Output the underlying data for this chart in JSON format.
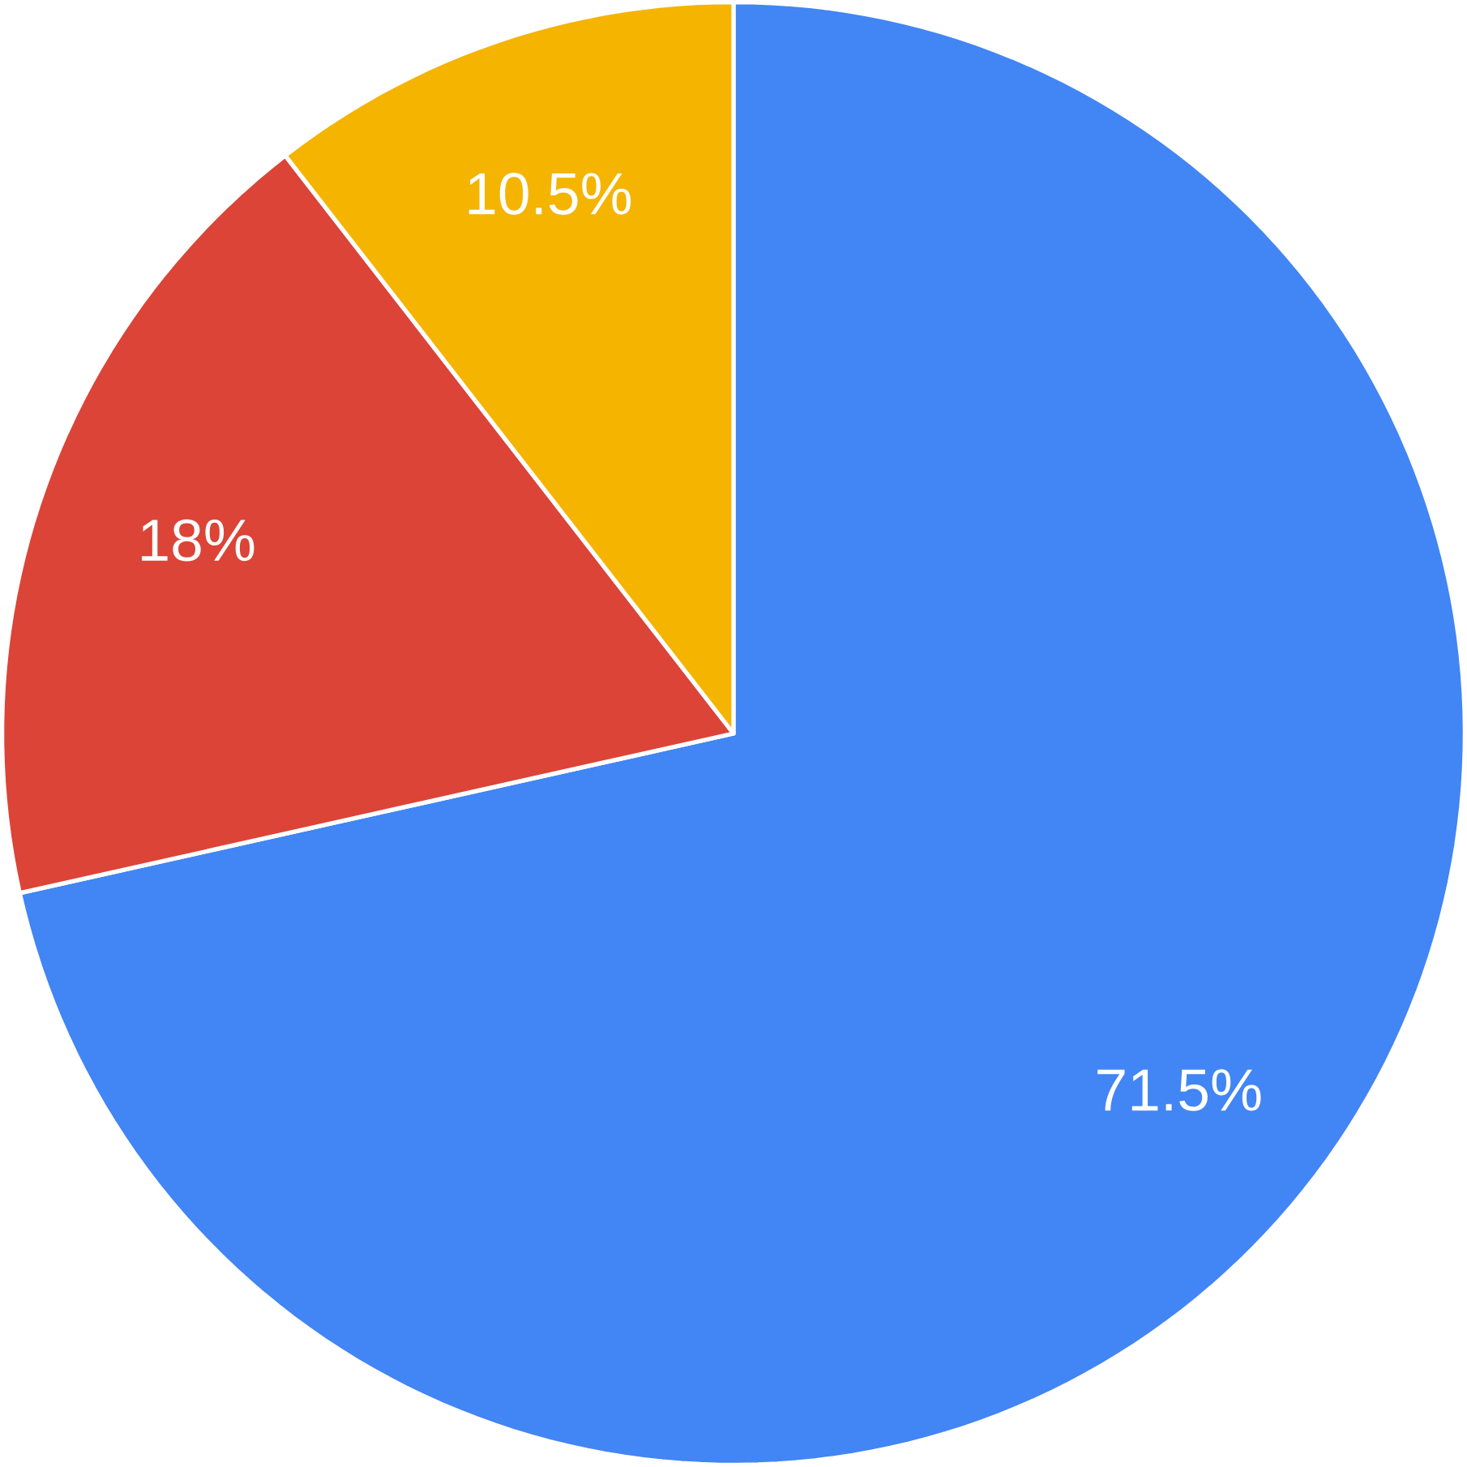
{
  "chart_data": {
    "type": "pie",
    "categories": [
      null,
      null,
      null
    ],
    "values": [
      71.5,
      18,
      10.5
    ],
    "colors": [
      "#4285f4",
      "#db4437",
      "#f4b400"
    ],
    "value_labels": [
      "71.5%",
      "18%",
      "10.5%"
    ]
  }
}
